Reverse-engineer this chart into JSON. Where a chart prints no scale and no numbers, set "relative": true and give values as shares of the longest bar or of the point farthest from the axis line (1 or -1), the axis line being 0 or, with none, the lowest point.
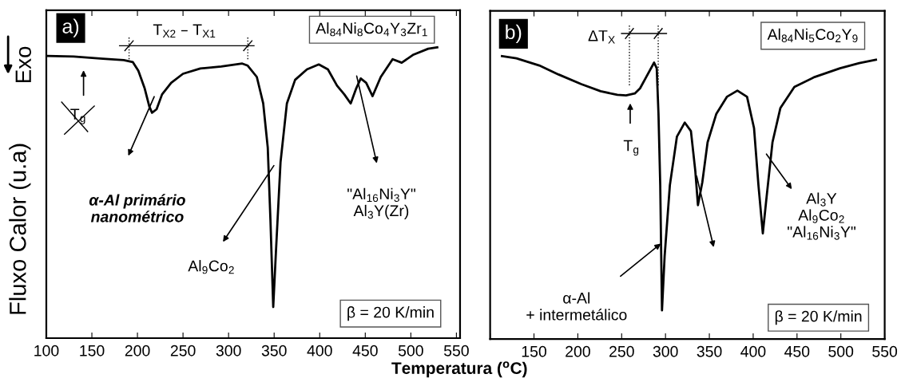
{
  "chart_data": [
    {
      "type": "line",
      "relative": true,
      "tick_labels": "x",
      "xlabel": "Temperatura ($^{o}$C)",
      "ylabel": "Fluxo Calor (u.a)",
      "xlim": [
        100,
        554
      ],
      "xticks": [
        100,
        150,
        200,
        250,
        300,
        350,
        400,
        450,
        500,
        550
      ],
      "grid": false,
      "legend": false,
      "marker": "none",
      "line_style": "solid",
      "series": [
        {
          "color": "#000000",
          "x": [
            101,
            130,
            162,
            185,
            195,
            201,
            208,
            213,
            216,
            221,
            227,
            237,
            250,
            269,
            292,
            315,
            321,
            331,
            338,
            343,
            346,
            349,
            352,
            357,
            364,
            373,
            386,
            399,
            409,
            419,
            427,
            434,
            440,
            445,
            451,
            458,
            467,
            480,
            490,
            503,
            519,
            529
          ],
          "values": [
            0.97,
            0.968,
            0.961,
            0.956,
            0.949,
            0.919,
            0.858,
            0.797,
            0.775,
            0.787,
            0.838,
            0.878,
            0.909,
            0.927,
            0.934,
            0.944,
            0.937,
            0.898,
            0.807,
            0.655,
            0.401,
            0.107,
            0.299,
            0.604,
            0.807,
            0.888,
            0.924,
            0.941,
            0.924,
            0.868,
            0.838,
            0.807,
            0.858,
            0.893,
            0.878,
            0.832,
            0.898,
            0.959,
            0.947,
            0.975,
            0.995,
            1.0
          ]
        }
      ],
      "annotations": [
        "a)",
        "T$_{X2}$ – T$_{X1}$",
        "Al$_{84}$Ni$_{8}$Co$_{4}$Y$_{3}$Zr$_{1}$",
        "T$_{g}$",
        "α-Al primário\nnanométrico",
        "Al$_{9}$Co$_{2}$",
        "\"Al$_{16}$Ni$_{3}$Y\"\nAl$_{3}$Y(Zr)",
        "β = 20 K/min",
        "Exo"
      ]
    },
    {
      "type": "line",
      "relative": true,
      "tick_labels": "x",
      "xlim": [
        100,
        550
      ],
      "xticks": [
        {
          "value": 100,
          "label": null
        },
        150,
        200,
        250,
        300,
        350,
        400,
        450,
        500,
        550
      ],
      "grid": false,
      "legend": false,
      "marker": "none",
      "line_style": "solid",
      "series": [
        {
          "color": "#000000",
          "x": [
            113.5,
            130,
            156,
            178,
            204,
            226,
            245,
            255,
            265,
            271,
            278,
            287,
            290,
            292,
            294,
            296,
            299,
            305,
            313,
            322,
            329,
            334,
            337,
            342,
            348,
            358,
            370,
            382,
            393,
            401,
            406,
            411,
            415,
            422,
            431,
            447,
            470,
            499,
            521,
            540
          ],
          "values": [
            1.0,
            0.992,
            0.967,
            0.935,
            0.901,
            0.876,
            0.863,
            0.861,
            0.868,
            0.886,
            0.926,
            0.977,
            0.957,
            0.796,
            0.544,
            0.101,
            0.292,
            0.544,
            0.715,
            0.765,
            0.735,
            0.594,
            0.473,
            0.554,
            0.695,
            0.796,
            0.856,
            0.878,
            0.856,
            0.745,
            0.544,
            0.373,
            0.493,
            0.695,
            0.816,
            0.891,
            0.926,
            0.957,
            0.975,
            0.987
          ]
        }
      ],
      "annotations": [
        "b)",
        "ΔT$_{X}$",
        "Al$_{84}$Ni$_{5}$Co$_{2}$Y$_{9}$",
        "T$_{g}$",
        "α-Al\n+ intermetálico",
        "Al$_{3}$Y\nAl$_{9}$Co$_{2}$\n\"Al$_{16}$Ni$_{3}$Y\"",
        "β = 20 K/min"
      ]
    }
  ]
}
